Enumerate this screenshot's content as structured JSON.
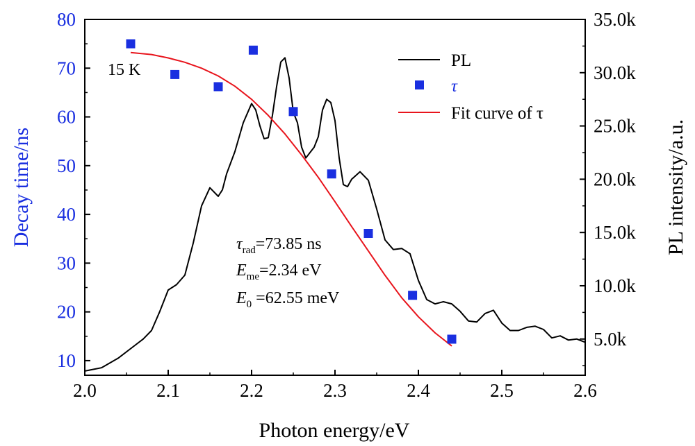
{
  "chart_data": {
    "type": "line",
    "xlabel": "Photon energy/eV",
    "ylabel_left": "Decay time/ns",
    "ylabel_right": "PL intensity/a.u.",
    "xlim": [
      2.0,
      2.6
    ],
    "ylim_left": [
      7,
      80
    ],
    "ylim_right": [
      1600,
      35000
    ],
    "x_ticks": [
      "2.0",
      "2.1",
      "2.2",
      "2.3",
      "2.4",
      "2.5",
      "2.6"
    ],
    "y_left_ticks": [
      "10",
      "20",
      "30",
      "40",
      "50",
      "60",
      "70",
      "80"
    ],
    "y_right_ticks": [
      "5.0k",
      "10.0k",
      "15.0k",
      "20.0k",
      "25.0k",
      "30.0k",
      "35.0k"
    ],
    "colors": {
      "pl": "#000000",
      "tau": "#1a2fe0",
      "fit": "#e8141c",
      "left_axis": "#1a2fe0"
    },
    "series": [
      {
        "name": "PL",
        "axis": "right",
        "x": [
          2.0,
          2.02,
          2.04,
          2.06,
          2.07,
          2.08,
          2.09,
          2.1,
          2.11,
          2.12,
          2.13,
          2.14,
          2.15,
          2.16,
          2.165,
          2.17,
          2.18,
          2.19,
          2.2,
          2.205,
          2.21,
          2.215,
          2.22,
          2.225,
          2.23,
          2.235,
          2.24,
          2.245,
          2.25,
          2.255,
          2.26,
          2.265,
          2.27,
          2.275,
          2.28,
          2.285,
          2.29,
          2.295,
          2.3,
          2.305,
          2.31,
          2.315,
          2.32,
          2.33,
          2.34,
          2.35,
          2.36,
          2.37,
          2.38,
          2.39,
          2.4,
          2.41,
          2.42,
          2.43,
          2.44,
          2.45,
          2.46,
          2.47,
          2.48,
          2.49,
          2.5,
          2.51,
          2.52,
          2.53,
          2.54,
          2.55,
          2.56,
          2.57,
          2.58,
          2.59,
          2.6
        ],
        "y": [
          2000,
          2300,
          3200,
          4400,
          5000,
          5800,
          7600,
          9600,
          10100,
          11000,
          14000,
          17500,
          19200,
          18400,
          19000,
          20500,
          22600,
          25300,
          27100,
          26500,
          25000,
          23800,
          23900,
          26000,
          28700,
          31000,
          31400,
          29500,
          26300,
          25300,
          23000,
          22000,
          22500,
          23000,
          24000,
          26500,
          27500,
          27200,
          25500,
          22000,
          19500,
          19300,
          20000,
          20700,
          19900,
          17200,
          14300,
          13400,
          13500,
          13000,
          10500,
          8700,
          8300,
          8500,
          8300,
          7600,
          6700,
          6600,
          7400,
          7700,
          6500,
          5800,
          5800,
          6100,
          6200,
          5900,
          5100,
          5300,
          4900,
          5000,
          4700
        ]
      },
      {
        "name": "τ",
        "axis": "left",
        "type": "scatter",
        "x": [
          2.055,
          2.108,
          2.16,
          2.202,
          2.25,
          2.296,
          2.34,
          2.393,
          2.44
        ],
        "y": [
          75,
          68.7,
          66.2,
          73.7,
          61.1,
          48.3,
          36.1,
          23.4,
          14.4
        ]
      },
      {
        "name": "Fit curve of τ",
        "axis": "left",
        "x": [
          2.055,
          2.08,
          2.1,
          2.12,
          2.14,
          2.16,
          2.18,
          2.2,
          2.22,
          2.24,
          2.26,
          2.28,
          2.3,
          2.32,
          2.34,
          2.36,
          2.38,
          2.4,
          2.42,
          2.44
        ],
        "y": [
          73.2,
          72.8,
          72.1,
          71.2,
          70.0,
          68.4,
          66.3,
          63.6,
          60.3,
          56.5,
          52.2,
          47.6,
          42.6,
          37.5,
          32.5,
          27.5,
          22.9,
          19.0,
          15.7,
          13.0
        ]
      }
    ],
    "legend": {
      "position": "top-right",
      "items": [
        {
          "label": "PL",
          "kind": "line",
          "color": "#000000"
        },
        {
          "label": "τ",
          "kind": "marker",
          "color": "#1a2fe0"
        },
        {
          "label": "Fit curve of  τ",
          "kind": "line",
          "color": "#e8141c"
        }
      ]
    },
    "annotations": {
      "temperature": "15 K",
      "tau_rad": {
        "symbol": "τ",
        "sub": "rad",
        "value": "=73.85 ns"
      },
      "e_me": {
        "symbol": "E",
        "sub": "me",
        "value": "=2.34 eV"
      },
      "e_0": {
        "symbol": "E",
        "sub": "0",
        "value": " =62.55 meV"
      }
    },
    "grid": false
  }
}
